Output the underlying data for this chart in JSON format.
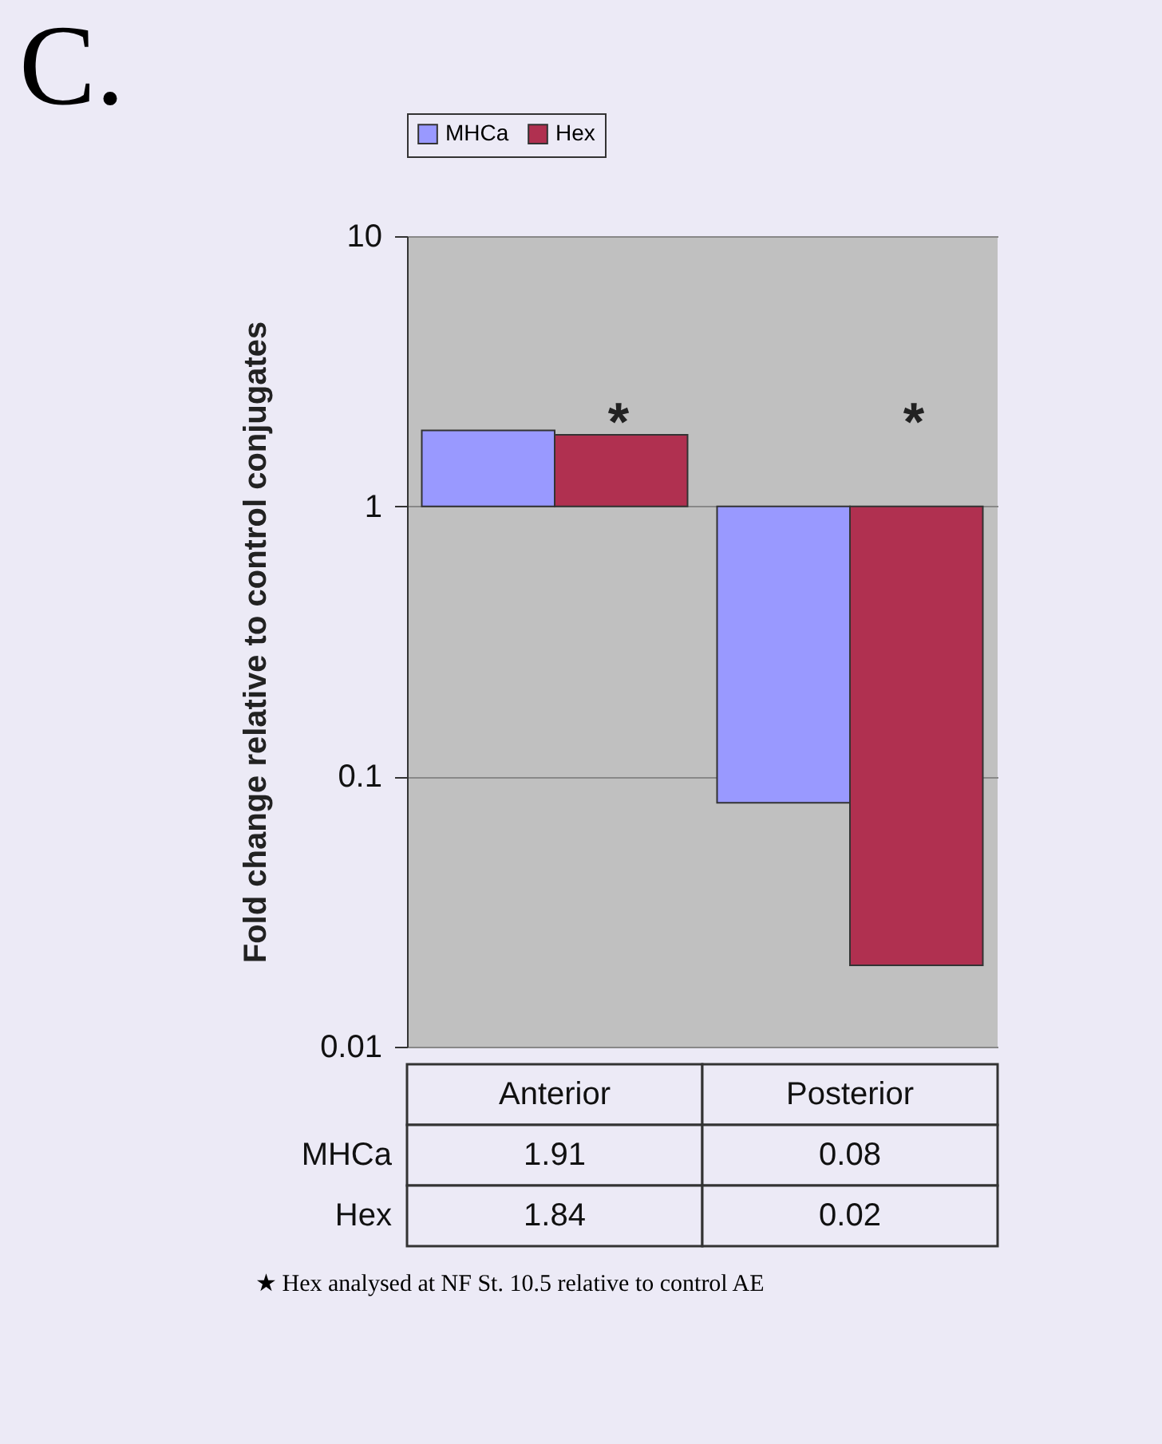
{
  "chart_data": {
    "type": "bar",
    "title": "C.",
    "ylabel": "Fold change relative to control conjugates",
    "categories": [
      "Anterior",
      "Posterior"
    ],
    "series": [
      {
        "name": "MHCa",
        "color": "#9999ff",
        "values": [
          0.91,
          -0.92
        ],
        "base": [
          1,
          1
        ],
        "value_labels": [
          "1.91",
          "0.08"
        ]
      },
      {
        "name": "Hex",
        "color": "#b03050",
        "values": [
          0.84,
          -0.98
        ],
        "base": [
          1,
          1
        ],
        "value_labels": [
          "1.84",
          "0.02"
        ]
      }
    ],
    "log": true,
    "ylim": [
      0.01,
      10
    ],
    "yticks": [
      0.01,
      0.1,
      1,
      10
    ],
    "grid": "y",
    "legend": "top",
    "annotations": [
      {
        "text": "*",
        "x": "Anterior"
      },
      "*",
      "★ Hex analysed at NF St. 10.5 relative to control AE"
    ]
  }
}
